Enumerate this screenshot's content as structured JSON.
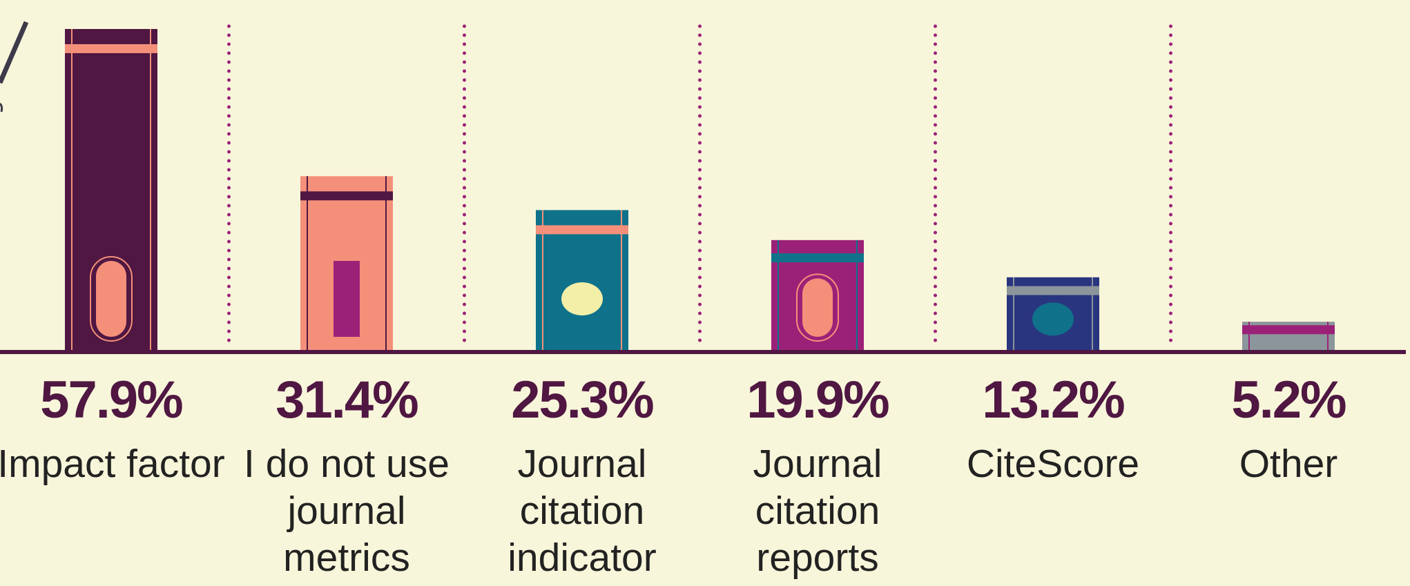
{
  "chart_data": {
    "type": "bar",
    "categories": [
      "Impact factor",
      "I do not use journal metrics",
      "Journal citation indicator",
      "Journal citation reports",
      "CiteScore",
      "Other"
    ],
    "values": [
      57.9,
      31.4,
      25.3,
      19.9,
      13.2,
      5.2
    ],
    "value_labels": [
      "57.9%",
      "31.4%",
      "25.3%",
      "19.9%",
      "13.2%",
      "5.2%"
    ],
    "colors": [
      "#4f1742",
      "#f4907a",
      "#0f728a",
      "#9b2178",
      "#2a3580",
      "#8c959b"
    ]
  }
}
